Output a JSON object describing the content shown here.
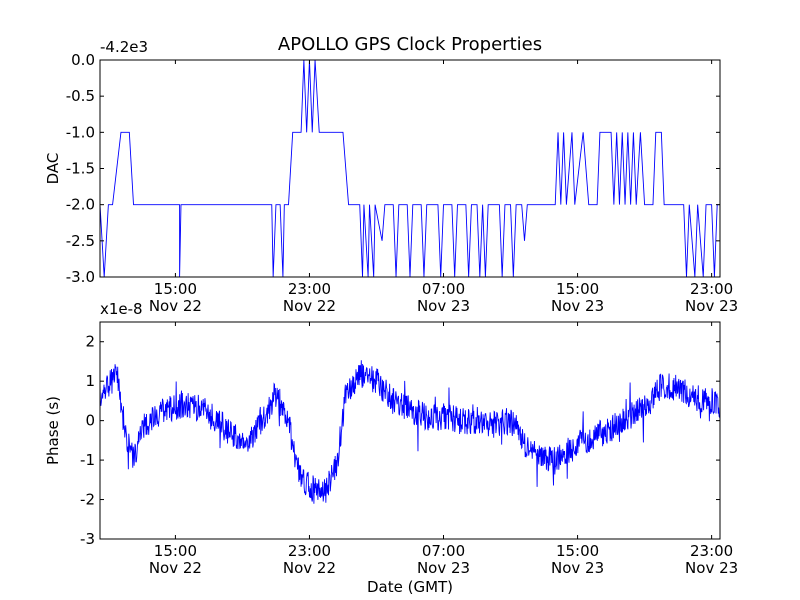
{
  "figure": {
    "title": "APOLLO GPS Clock Properties",
    "background": "#ffffff",
    "line_color": "#0000ff"
  },
  "chart_data": [
    {
      "type": "line",
      "ylabel": "DAC",
      "xlabel": "",
      "y_offset_label": "-4.2e3",
      "ylim": [
        -3.0,
        0.0
      ],
      "yticks": [
        -3.0,
        -2.5,
        -2.0,
        -1.5,
        -1.0,
        -0.5,
        0.0
      ],
      "ytick_labels": [
        "-3.0",
        "-2.5",
        "-2.0",
        "-1.5",
        "-1.0",
        "-0.5",
        "0.0"
      ],
      "xlim": [
        "Nov 22 10:30",
        "Nov 23 23:30"
      ],
      "xticks": [
        {
          "time": "15:00",
          "date": "Nov 22"
        },
        {
          "time": "23:00",
          "date": "Nov 22"
        },
        {
          "time": "07:00",
          "date": "Nov 23"
        },
        {
          "time": "15:00",
          "date": "Nov 23"
        },
        {
          "time": "23:00",
          "date": "Nov 23"
        }
      ],
      "grid": false,
      "series": [
        {
          "color": "#0000ff",
          "points": [
            [
              "Nov 22 10:30",
              -2.0
            ],
            [
              "Nov 22 10:45",
              -3.0
            ],
            [
              "Nov 22 11:00",
              -2.0
            ],
            [
              "Nov 22 11:15",
              -2.0
            ],
            [
              "Nov 22 11:45",
              -1.0
            ],
            [
              "Nov 22 12:15",
              -1.0
            ],
            [
              "Nov 22 12:30",
              -2.0
            ],
            [
              "Nov 22 14:30",
              -2.0
            ],
            [
              "Nov 22 15:15",
              -2.0
            ],
            [
              "Nov 22 15:15",
              -3.0
            ],
            [
              "Nov 22 15:20",
              -2.0
            ],
            [
              "Nov 22 20:00",
              -2.0
            ],
            [
              "Nov 22 20:45",
              -2.0
            ],
            [
              "Nov 22 20:50",
              -3.0
            ],
            [
              "Nov 22 21:00",
              -2.0
            ],
            [
              "Nov 22 21:15",
              -2.0
            ],
            [
              "Nov 22 21:25",
              -3.0
            ],
            [
              "Nov 22 21:30",
              -2.0
            ],
            [
              "Nov 22 21:45",
              -2.0
            ],
            [
              "Nov 22 22:00",
              -1.0
            ],
            [
              "Nov 22 22:30",
              -1.0
            ],
            [
              "Nov 22 22:40",
              0.0
            ],
            [
              "Nov 22 22:50",
              -1.0
            ],
            [
              "Nov 22 23:00",
              0.0
            ],
            [
              "Nov 22 23:10",
              -1.0
            ],
            [
              "Nov 22 23:20",
              0.0
            ],
            [
              "Nov 22 23:35",
              -1.0
            ],
            [
              "Nov 22 25:00",
              -1.0
            ],
            [
              "Nov 22 25:20",
              -2.0
            ],
            [
              "Nov 22 26:00",
              -2.0
            ],
            [
              "Nov 22 26:10",
              -3.0
            ],
            [
              "Nov 22 26:15",
              -2.0
            ],
            [
              "Nov 22 26:30",
              -3.0
            ],
            [
              "Nov 22 26:35",
              -2.0
            ],
            [
              "Nov 22 26:50",
              -3.0
            ],
            [
              "Nov 22 26:55",
              -2.0
            ],
            [
              "Nov 22 27:20",
              -2.5
            ],
            [
              "Nov 22 27:30",
              -2.0
            ],
            [
              "Nov 22 28:00",
              -2.0
            ],
            [
              "Nov 22 28:10",
              -3.0
            ],
            [
              "Nov 22 28:20",
              -2.0
            ],
            [
              "Nov 22 28:50",
              -2.0
            ],
            [
              "Nov 22 29:00",
              -3.0
            ],
            [
              "Nov 22 29:10",
              -2.0
            ],
            [
              "Nov 22 29:40",
              -2.0
            ],
            [
              "Nov 22 29:50",
              -3.0
            ],
            [
              "Nov 22 30:00",
              -2.0
            ],
            [
              "Nov 22 30:40",
              -2.0
            ],
            [
              "Nov 22 30:50",
              -3.0
            ],
            [
              "Nov 22 31:00",
              -2.0
            ],
            [
              "Nov 22 31:30",
              -2.0
            ],
            [
              "Nov 22 31:40",
              -3.0
            ],
            [
              "Nov 22 31:50",
              -2.0
            ],
            [
              "Nov 22 32:20",
              -2.0
            ],
            [
              "Nov 22 32:30",
              -3.0
            ],
            [
              "Nov 22 32:40",
              -2.0
            ],
            [
              "Nov 22 33:00",
              -2.0
            ],
            [
              "Nov 22 33:10",
              -3.0
            ],
            [
              "Nov 22 33:20",
              -2.0
            ],
            [
              "Nov 22 33:30",
              -3.0
            ],
            [
              "Nov 22 33:40",
              -2.0
            ],
            [
              "Nov 22 34:20",
              -2.0
            ],
            [
              "Nov 22 34:30",
              -3.0
            ],
            [
              "Nov 22 34:40",
              -2.0
            ],
            [
              "Nov 22 35:00",
              -2.0
            ],
            [
              "Nov 22 35:10",
              -3.0
            ],
            [
              "Nov 22 35:20",
              -2.0
            ],
            [
              "Nov 22 35:40",
              -2.0
            ],
            [
              "Nov 22 35:50",
              -2.5
            ],
            [
              "Nov 22 36:00",
              -2.0
            ],
            [
              "Nov 22 37:40",
              -2.0
            ],
            [
              "Nov 22 37:50",
              -1.0
            ],
            [
              "Nov 22 38:00",
              -2.0
            ],
            [
              "Nov 22 38:10",
              -1.0
            ],
            [
              "Nov 22 38:20",
              -2.0
            ],
            [
              "Nov 22 38:40",
              -1.0
            ],
            [
              "Nov 22 38:50",
              -2.0
            ],
            [
              "Nov 22 39:20",
              -1.0
            ],
            [
              "Nov 22 39:40",
              -2.0
            ],
            [
              "Nov 22 40:10",
              -2.0
            ],
            [
              "Nov 22 40:20",
              -1.0
            ],
            [
              "Nov 22 41:00",
              -1.0
            ],
            [
              "Nov 22 41:10",
              -2.0
            ],
            [
              "Nov 22 41:20",
              -1.0
            ],
            [
              "Nov 22 41:30",
              -2.0
            ],
            [
              "Nov 22 41:40",
              -1.0
            ],
            [
              "Nov 22 41:50",
              -2.0
            ],
            [
              "Nov 22 42:00",
              -1.0
            ],
            [
              "Nov 22 42:10",
              -2.0
            ],
            [
              "Nov 22 42:20",
              -1.0
            ],
            [
              "Nov 22 42:30",
              -2.0
            ],
            [
              "Nov 22 42:45",
              -1.0
            ],
            [
              "Nov 22 43:00",
              -2.0
            ],
            [
              "Nov 22 43:30",
              -2.0
            ],
            [
              "Nov 22 43:40",
              -1.0
            ],
            [
              "Nov 22 44:00",
              -1.0
            ],
            [
              "Nov 22 44:10",
              -2.0
            ],
            [
              "Nov 22 45:20",
              -2.0
            ],
            [
              "Nov 22 45:30",
              -3.0
            ],
            [
              "Nov 22 45:40",
              -2.0
            ],
            [
              "Nov 22 46:00",
              -3.0
            ],
            [
              "Nov 22 46:10",
              -2.0
            ],
            [
              "Nov 22 46:30",
              -3.0
            ],
            [
              "Nov 22 46:40",
              -2.0
            ],
            [
              "Nov 22 47:00",
              -2.0
            ],
            [
              "Nov 22 47:10",
              -3.0
            ],
            [
              "Nov 22 47:20",
              -2.0
            ],
            [
              "Nov 22 47:30",
              -2.0
            ]
          ]
        }
      ]
    },
    {
      "type": "line",
      "ylabel": "Phase (s)",
      "xlabel": "Date (GMT)",
      "y_offset_label": "x1e-8",
      "ylim": [
        -3,
        2.5
      ],
      "yticks": [
        -3,
        -2,
        -1,
        0,
        1,
        2
      ],
      "ytick_labels": [
        "-3",
        "-2",
        "-1",
        "0",
        "1",
        "2"
      ],
      "xlim": [
        "Nov 22 10:30",
        "Nov 23 23:30"
      ],
      "xticks": [
        {
          "time": "15:00",
          "date": "Nov 22"
        },
        {
          "time": "23:00",
          "date": "Nov 22"
        },
        {
          "time": "07:00",
          "date": "Nov 23"
        },
        {
          "time": "15:00",
          "date": "Nov 23"
        },
        {
          "time": "23:00",
          "date": "Nov 23"
        }
      ],
      "grid": false,
      "series": [
        {
          "color": "#0000ff",
          "noise_amplitude": 0.35,
          "trend": [
            [
              "Nov 22 10:30",
              0.6
            ],
            [
              "Nov 22 11:30",
              1.2
            ],
            [
              "Nov 22 12:00",
              -0.3
            ],
            [
              "Nov 22 12:30",
              -1.0
            ],
            [
              "Nov 22 13:00",
              -0.2
            ],
            [
              "Nov 22 14:00",
              0.2
            ],
            [
              "Nov 22 15:30",
              0.4
            ],
            [
              "Nov 22 16:30",
              0.3
            ],
            [
              "Nov 22 17:30",
              0.0
            ],
            [
              "Nov 22 18:30",
              -0.4
            ],
            [
              "Nov 22 19:30",
              -0.5
            ],
            [
              "Nov 22 20:30",
              0.2
            ],
            [
              "Nov 22 21:00",
              0.7
            ],
            [
              "Nov 22 21:45",
              0.0
            ],
            [
              "Nov 22 22:15",
              -1.2
            ],
            [
              "Nov 22 23:00",
              -1.7
            ],
            [
              "Nov 22 24:00",
              -1.8
            ],
            [
              "Nov 22 24:40",
              -1.0
            ],
            [
              "Nov 22 25:10",
              0.6
            ],
            [
              "Nov 22 26:00",
              1.2
            ],
            [
              "Nov 22 27:00",
              1.0
            ],
            [
              "Nov 22 28:00",
              0.5
            ],
            [
              "Nov 22 29:00",
              0.3
            ],
            [
              "Nov 22 30:00",
              0.1
            ],
            [
              "Nov 22 31:00",
              0.1
            ],
            [
              "Nov 22 32:00",
              0.0
            ],
            [
              "Nov 22 33:00",
              0.0
            ],
            [
              "Nov 22 34:00",
              -0.1
            ],
            [
              "Nov 22 35:00",
              0.0
            ],
            [
              "Nov 22 36:00",
              -0.7
            ],
            [
              "Nov 22 37:00",
              -1.0
            ],
            [
              "Nov 22 38:00",
              -0.9
            ],
            [
              "Nov 22 39:00",
              -0.6
            ],
            [
              "Nov 22 40:00",
              -0.4
            ],
            [
              "Nov 22 41:00",
              -0.2
            ],
            [
              "Nov 22 42:00",
              0.1
            ],
            [
              "Nov 22 43:00",
              0.3
            ],
            [
              "Nov 22 44:00",
              0.9
            ],
            [
              "Nov 22 45:00",
              0.8
            ],
            [
              "Nov 22 46:00",
              0.6
            ],
            [
              "Nov 22 47:00",
              0.5
            ],
            [
              "Nov 22 47:30",
              0.4
            ]
          ]
        }
      ]
    }
  ]
}
